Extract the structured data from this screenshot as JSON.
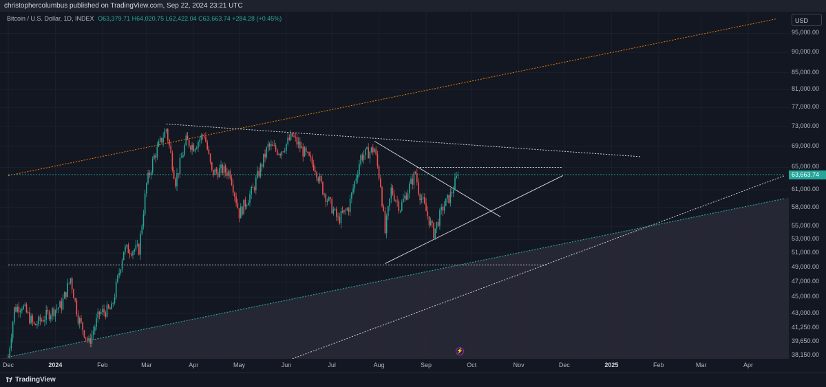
{
  "header": {
    "published": "christophercolumbus published on TradingView.com, Sep 22, 2024 23:21 UTC"
  },
  "legend": {
    "symbol": "Bitcoin / U.S. Dollar, 1D, INDEX",
    "ohlc": "O63,379.71 H64,020.75 L62,422.04 C63,663.74 +284.28 (+0.45%)"
  },
  "currency_label": "USD",
  "last_price_label": "63,663.74",
  "footer": {
    "brand": "TradingView"
  },
  "colors": {
    "background": "#131722",
    "up": "#26a69a",
    "down": "#ef5350",
    "orange_line": "#f57c00",
    "trend_lines": "#d1d4dc",
    "shaded_region": "#2a2a37"
  },
  "chart_data": {
    "type": "candlestick",
    "series": [
      {
        "name": "Bitcoin / U.S. Dollar, 1D, INDEX"
      }
    ],
    "y_scale": "log",
    "ylim": [
      37800,
      101000
    ],
    "xlim": [
      "2023-12-01",
      "2025-04-25"
    ],
    "y_ticks": [
      "38,150.00",
      "39,650.00",
      "41,250.00",
      "43,000.00",
      "45,000.00",
      "47,000.00",
      "49,000.00",
      "51,000.00",
      "53,000.00",
      "55,000.00",
      "58,000.00",
      "61,000.00",
      "65,000.00",
      "69,000.00",
      "73,000.00",
      "77,000.00",
      "81,000.00",
      "85,000.00",
      "90,000.00",
      "95,000.00"
    ],
    "y_tick_values": [
      38150,
      39650,
      41250,
      43000,
      45000,
      47000,
      49000,
      51000,
      53000,
      55000,
      58000,
      61000,
      65000,
      69000,
      73000,
      77000,
      81000,
      85000,
      90000,
      95000
    ],
    "x_ticks": [
      {
        "label": "Dec",
        "date": "2023-12-01"
      },
      {
        "label": "2024",
        "date": "2024-01-01",
        "bold": true
      },
      {
        "label": "Feb",
        "date": "2024-02-01"
      },
      {
        "label": "Mar",
        "date": "2024-03-01"
      },
      {
        "label": "Apr",
        "date": "2024-04-01"
      },
      {
        "label": "May",
        "date": "2024-05-01"
      },
      {
        "label": "Jun",
        "date": "2024-06-01"
      },
      {
        "label": "Jul",
        "date": "2024-07-01"
      },
      {
        "label": "Aug",
        "date": "2024-08-01"
      },
      {
        "label": "Sep",
        "date": "2024-09-01"
      },
      {
        "label": "Oct",
        "date": "2024-10-01"
      },
      {
        "label": "Nov",
        "date": "2024-11-01"
      },
      {
        "label": "Dec",
        "date": "2024-12-01"
      },
      {
        "label": "2025",
        "date": "2025-01-01",
        "bold": true
      },
      {
        "label": "Feb",
        "date": "2025-02-01"
      },
      {
        "label": "Mar",
        "date": "2025-03-01"
      },
      {
        "label": "Apr",
        "date": "2025-04-01"
      }
    ],
    "price_path": [
      [
        "2023-12-01",
        38000
      ],
      [
        "2023-12-05",
        43500
      ],
      [
        "2023-12-10",
        44000
      ],
      [
        "2023-12-18",
        41500
      ],
      [
        "2023-12-28",
        43000
      ],
      [
        "2024-01-05",
        44000
      ],
      [
        "2024-01-11",
        47500
      ],
      [
        "2024-01-16",
        42500
      ],
      [
        "2024-01-23",
        39500
      ],
      [
        "2024-01-30",
        43000
      ],
      [
        "2024-02-07",
        43500
      ],
      [
        "2024-02-15",
        51500
      ],
      [
        "2024-02-25",
        51500
      ],
      [
        "2024-03-01",
        62000
      ],
      [
        "2024-03-06",
        67000
      ],
      [
        "2024-03-14",
        72500
      ],
      [
        "2024-03-20",
        62500
      ],
      [
        "2024-03-27",
        70000
      ],
      [
        "2024-04-01",
        69000
      ],
      [
        "2024-04-08",
        71500
      ],
      [
        "2024-04-13",
        64000
      ],
      [
        "2024-04-20",
        64500
      ],
      [
        "2024-04-25",
        64000
      ],
      [
        "2024-05-01",
        57000
      ],
      [
        "2024-05-10",
        61000
      ],
      [
        "2024-05-20",
        69000
      ],
      [
        "2024-05-28",
        68000
      ],
      [
        "2024-06-05",
        71000
      ],
      [
        "2024-06-12",
        68000
      ],
      [
        "2024-06-20",
        65000
      ],
      [
        "2024-06-25",
        61000
      ],
      [
        "2024-07-05",
        56000
      ],
      [
        "2024-07-12",
        58000
      ],
      [
        "2024-07-20",
        67000
      ],
      [
        "2024-07-29",
        68500
      ],
      [
        "2024-08-02",
        62000
      ],
      [
        "2024-08-05",
        54000
      ],
      [
        "2024-08-09",
        61000
      ],
      [
        "2024-08-15",
        58000
      ],
      [
        "2024-08-25",
        64000
      ],
      [
        "2024-08-27",
        61000
      ],
      [
        "2024-09-06",
        54000
      ],
      [
        "2024-09-12",
        58000
      ],
      [
        "2024-09-17",
        60000
      ],
      [
        "2024-09-22",
        63663.74
      ]
    ],
    "trend_lines": [
      {
        "name": "orange-channel-top",
        "color": "#f57c00",
        "dash": true,
        "from": [
          "2023-12-01",
          63500
        ],
        "to": [
          "2025-04-20",
          99000
        ]
      },
      {
        "name": "triangle-top",
        "color": "#d1d4dc",
        "dash": true,
        "from": [
          "2024-03-14",
          73500
        ],
        "to": [
          "2025-01-20",
          67000
        ]
      },
      {
        "name": "wedge-top",
        "color": "#d1d4dc",
        "dash": false,
        "from": [
          "2024-07-29",
          70000
        ],
        "to": [
          "2024-10-20",
          56500
        ]
      },
      {
        "name": "wedge-bottom",
        "color": "#d1d4dc",
        "dash": false,
        "from": [
          "2024-08-05",
          49500
        ],
        "to": [
          "2024-11-30",
          63500
        ]
      },
      {
        "name": "horizontal-65000",
        "color": "#d1d4dc",
        "dash": true,
        "from": [
          "2024-08-26",
          65000
        ],
        "to": [
          "2024-11-30",
          65000
        ]
      },
      {
        "name": "horizontal-49300",
        "color": "#d1d4dc",
        "dash": true,
        "from": [
          "2023-12-01",
          49300
        ],
        "to": [
          "2024-11-20",
          49300
        ]
      },
      {
        "name": "long-support",
        "color": "#d1d4dc",
        "dash": true,
        "from": [
          "2024-06-05",
          37800
        ],
        "to": [
          "2025-04-25",
          63500
        ]
      },
      {
        "name": "teal-channel",
        "color": "#26a69a",
        "dash": true,
        "from": [
          "2023-12-01",
          38000
        ],
        "to": [
          "2025-04-25",
          59500
        ]
      },
      {
        "name": "last-price",
        "color": "#26a69a",
        "dash": true,
        "from": [
          "2023-12-01",
          63663.74
        ],
        "to": [
          "2025-04-25",
          63663.74
        ]
      }
    ]
  }
}
